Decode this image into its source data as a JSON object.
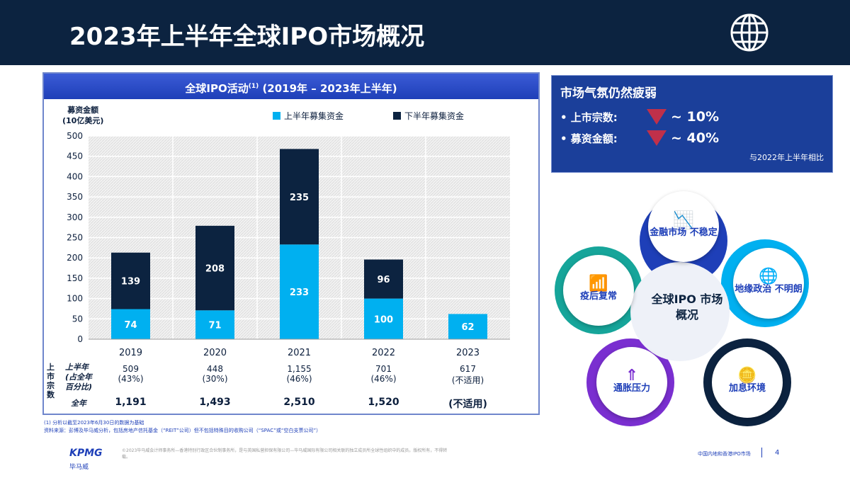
{
  "header": {
    "title": "2023年上半年全球IPO市场概况",
    "icon": "globe-icon"
  },
  "chart_data": {
    "type": "bar",
    "stacked": true,
    "title": "全球IPO活动(1) (2019年 – 2023年上半年)",
    "ylabel": "募资金额 (10亿美元)",
    "ylim": [
      0,
      500
    ],
    "yticks": [
      0,
      50,
      100,
      150,
      200,
      250,
      300,
      350,
      400,
      450,
      500
    ],
    "categories": [
      "2019",
      "2020",
      "2021",
      "2022",
      "2023"
    ],
    "series": [
      {
        "name": "上半年募集资金",
        "color": "#00b0f0",
        "values": [
          74,
          71,
          233,
          100,
          62
        ]
      },
      {
        "name": "下半年募集资金",
        "color": "#0c2340",
        "values": [
          139,
          208,
          235,
          96,
          null
        ]
      }
    ],
    "legend": "top"
  },
  "chart_text": {
    "title_main": "全球IPO活动",
    "title_sup": "(1)",
    "title_rest": " (2019年 – 2023年上半年)",
    "ylabel1": "募资金额",
    "ylabel2": "(10亿美元)"
  },
  "table": {
    "group_label": "上市宗数",
    "row1_label": "上半年 (占全年 百分比)",
    "row2_label": "全年",
    "h1": [
      "509",
      "448",
      "1,155",
      "701",
      "617"
    ],
    "h1_pct": [
      "(43%)",
      "(30%)",
      "(46%)",
      "(46%)",
      "(不适用)"
    ],
    "full": [
      "1,191",
      "1,493",
      "2,510",
      "1,520",
      "(不适用)"
    ]
  },
  "notes": [
    "(1)  分析以截至2023年6月30日的数据为基础",
    "资料来源：彭博及毕马威分析，包括房地产信托基金（“REIT”公司）但不包括特殊目的收购公司（“SPAC”或“空白支票公司”）"
  ],
  "footer": {
    "logo": "KPMG",
    "logo_cn": "毕马威",
    "copyright": "©2023毕马威会计师事务所—香港特别行政区合伙制事务所，是与英国私营担保有限公司—毕马威国际有限公司相关联的独立成员所全球性组织中的成员。版权所有，不得转载。",
    "section": "中国内地和香港IPO市场",
    "page": "4"
  },
  "keybox": {
    "title": "市场气氛仍然疲弱",
    "rows": [
      {
        "label": "• 上市宗数:",
        "value": "~ 10%"
      },
      {
        "label": "• 募资金额:",
        "value": "~ 40%"
      }
    ],
    "note": "与2022年上半年相比",
    "down_color": "#c0304a"
  },
  "diagram": {
    "center": "全球IPO 市场概况",
    "items": [
      {
        "label": "金融市场 不稳定",
        "icon": "chart-icon"
      },
      {
        "label": "地缘政治 不明朗",
        "icon": "globe-icon"
      },
      {
        "label": "加息环境",
        "icon": "coins-icon"
      },
      {
        "label": "通胀压力",
        "icon": "rising-arrows-icon"
      },
      {
        "label": "疫后复常",
        "icon": "bar-growth-icon"
      }
    ]
  }
}
